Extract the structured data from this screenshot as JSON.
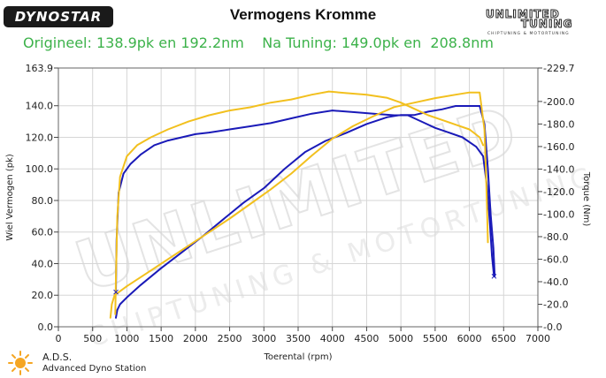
{
  "header": {
    "logo_text": "DYNOSTAR",
    "title": "Vermogens Kromme",
    "subtitle": "Origineel: 138.9pk en 192.2nm    Na Tuning: 149.0pk en  208.8nm",
    "brand_line1": "UNLIMITED",
    "brand_line2": "TUNING",
    "brand_line3": "CHIPTUNING & MOTORTUNING"
  },
  "footer": {
    "ads_title": "A.D.S.",
    "ads_subtitle": "Advanced Dyno Station"
  },
  "watermark": {
    "text1": "UNLIMITED",
    "text2": "CHIPTUNING & MOTORTUNING"
  },
  "colors": {
    "original": "#1a1ab8",
    "tuned": "#f2c01e",
    "grid": "#d6d6d6",
    "title_green": "#3cb24a"
  },
  "chart_data": {
    "type": "line",
    "title": "Vermogens Kromme",
    "xlabel": "Toerental (rpm)",
    "ylabel": "Wiel Vermogen (pk)",
    "y2label": "Torque (Nm)",
    "xlim": [
      0,
      7000
    ],
    "ylim": [
      0,
      163.9
    ],
    "y2lim": [
      0,
      229.7
    ],
    "grid": true,
    "x_ticks": [
      "0",
      "500",
      "1000",
      "1500",
      "2000",
      "2500",
      "3000",
      "3500",
      "4000",
      "4500",
      "5000",
      "5500",
      "6000",
      "6500",
      "7000"
    ],
    "y_ticks": [
      "0.0",
      "20.0",
      "40.0",
      "60.0",
      "80.0",
      "100.0",
      "120.0",
      "140.0",
      "163.9"
    ],
    "y2_ticks": [
      "0.0",
      "20.0",
      "40.0",
      "60.0",
      "80.0",
      "100.0",
      "120.0",
      "140.0",
      "160.0",
      "180.0",
      "200.0",
      "229.7"
    ],
    "series": [
      {
        "key": "power_original",
        "axis": "left",
        "color": "#1a1ab8",
        "x": [
          840,
          850,
          880,
          950,
          1050,
          1200,
          1400,
          1600,
          1800,
          2000,
          2200,
          2500,
          2800,
          3100,
          3400,
          3700,
          4000,
          4300,
          4600,
          4900,
          5100,
          5300,
          5500,
          5700,
          5900,
          6100,
          6200,
          6260,
          6300,
          6330,
          6360
        ],
        "values": [
          22,
          55,
          85,
          97,
          103,
          109,
          115,
          118,
          120,
          122,
          123,
          125,
          127,
          129,
          132,
          135,
          137,
          136,
          135,
          134,
          134,
          130,
          126,
          123,
          120,
          114,
          108,
          88,
          65,
          45,
          32
        ]
      },
      {
        "key": "torque_original",
        "axis": "right",
        "color": "#1a1ab8",
        "x": [
          840,
          860,
          900,
          1000,
          1200,
          1500,
          1800,
          2100,
          2400,
          2700,
          3000,
          3300,
          3600,
          3900,
          4200,
          4500,
          4800,
          5000,
          5200,
          5400,
          5600,
          5800,
          6000,
          6150,
          6220,
          6270,
          6310,
          6350,
          6370
        ],
        "values": [
          8,
          15,
          20,
          26,
          37,
          52,
          66,
          80,
          95,
          110,
          123,
          140,
          155,
          165,
          172,
          180,
          186,
          188,
          188,
          191,
          193,
          196,
          196,
          196,
          180,
          140,
          100,
          70,
          45
        ]
      },
      {
        "key": "power_tuned",
        "axis": "left",
        "color": "#f2c01e",
        "x": [
          830,
          840,
          860,
          900,
          1000,
          1150,
          1350,
          1600,
          1900,
          2200,
          2500,
          2800,
          3100,
          3400,
          3700,
          3950,
          4200,
          4500,
          4800,
          5000,
          5200,
          5400,
          5600,
          5800,
          6000,
          6150,
          6200
        ],
        "values": [
          8,
          30,
          70,
          95,
          108,
          115,
          120,
          125,
          130,
          134,
          137,
          139,
          142,
          144,
          147,
          149,
          148,
          147,
          145,
          142,
          138,
          134,
          131,
          128,
          125,
          120,
          115
        ]
      },
      {
        "key": "torque_tuned",
        "axis": "right",
        "color": "#f2c01e",
        "x": [
          760,
          780,
          820,
          1000,
          1300,
          1600,
          1900,
          2200,
          2500,
          2800,
          3100,
          3400,
          3700,
          4000,
          4300,
          4600,
          4900,
          5200,
          5500,
          5800,
          6000,
          6150,
          6220,
          6240,
          6260,
          6270
        ],
        "values": [
          8,
          20,
          28,
          36,
          48,
          60,
          72,
          84,
          96,
          109,
          122,
          136,
          152,
          167,
          178,
          187,
          195,
          199,
          203,
          206,
          208,
          208,
          175,
          140,
          100,
          75
        ]
      }
    ]
  }
}
